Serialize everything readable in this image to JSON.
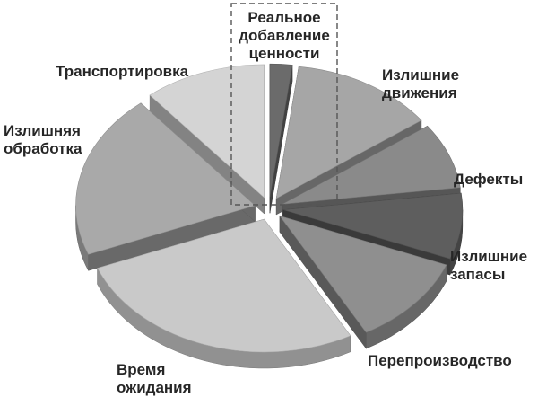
{
  "chart_data": {
    "type": "pie",
    "style": "exploded-3d",
    "legend": "none",
    "slices": [
      {
        "lines": [
          "Реальное",
          "добавление",
          "ценности"
        ],
        "value": 2,
        "color": "#6b6b6b",
        "highlight": "dashed-box"
      },
      {
        "lines": [
          "Излишние",
          "движения"
        ],
        "value": 13,
        "color": "#a6a6a6"
      },
      {
        "lines": [
          "Дефекты"
        ],
        "value": 8,
        "color": "#8a8a8a"
      },
      {
        "lines": [
          "Излишние",
          "запасы"
        ],
        "value": 8,
        "color": "#5e5e5e"
      },
      {
        "lines": [
          "Перепроизводство"
        ],
        "value": 11,
        "color": "#8f8f8f"
      },
      {
        "lines": [
          "Время",
          "ожидания"
        ],
        "value": 27,
        "color": "#c9c9c9"
      },
      {
        "lines": [
          "Излишняя",
          "обработка"
        ],
        "value": 20,
        "color": "#a9a9a9"
      },
      {
        "lines": [
          "Транспортировка"
        ],
        "value": 11,
        "color": "#d4d4d4"
      }
    ]
  }
}
